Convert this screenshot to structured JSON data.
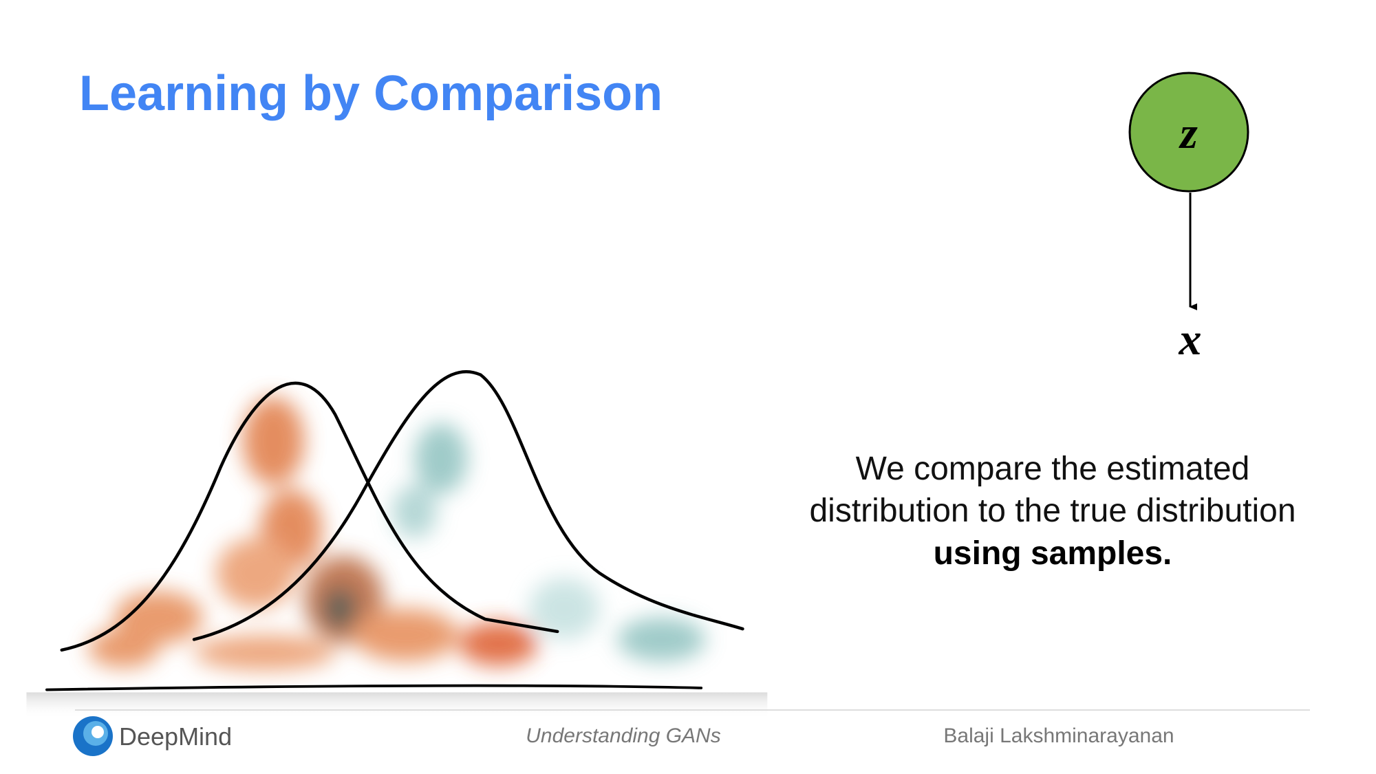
{
  "title": "Learning by Comparison",
  "description": {
    "lines": [
      "We compare the estimated",
      "distribution to the true distribution"
    ],
    "emphasis": "using samples."
  },
  "diagram": {
    "nodes": [
      {
        "label": "z"
      },
      {
        "label": "x"
      }
    ]
  },
  "footer": {
    "logo": "DeepMind",
    "talk": "Understanding GANs",
    "author": "Balaji Lakshminarayanan"
  }
}
